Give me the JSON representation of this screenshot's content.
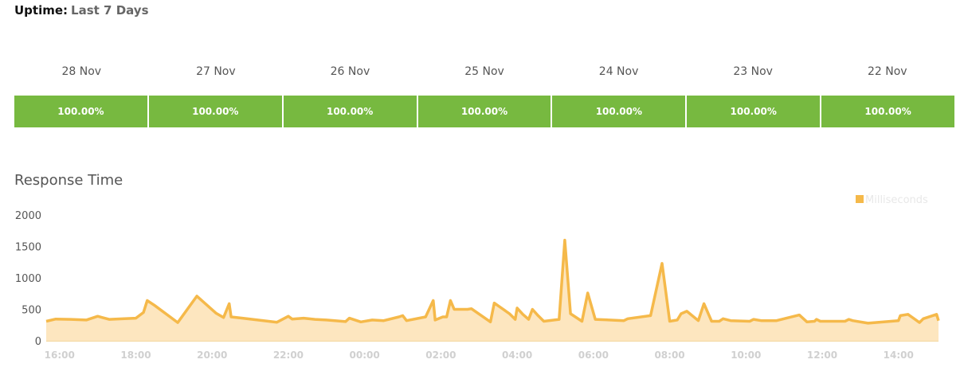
{
  "uptime": {
    "label": "Uptime:",
    "period": "Last 7 Days",
    "ok_color": "#77b940",
    "days": [
      {
        "date": "28 Nov",
        "percent": "100.00%"
      },
      {
        "date": "27 Nov",
        "percent": "100.00%"
      },
      {
        "date": "26 Nov",
        "percent": "100.00%"
      },
      {
        "date": "25 Nov",
        "percent": "100.00%"
      },
      {
        "date": "24 Nov",
        "percent": "100.00%"
      },
      {
        "date": "23 Nov",
        "percent": "100.00%"
      },
      {
        "date": "22 Nov",
        "percent": "100.00%"
      }
    ]
  },
  "response": {
    "title": "Response Time"
  },
  "chart_data": {
    "type": "area",
    "title": "Response Time",
    "xlabel": "",
    "ylabel": "",
    "ylim": [
      0,
      2000
    ],
    "y_ticks": [
      "2000",
      "1500",
      "1000",
      "500",
      "0"
    ],
    "x_ticks": [
      {
        "label": "16:00",
        "x": 16
      },
      {
        "label": "18:00",
        "x": 18
      },
      {
        "label": "20:00",
        "x": 20
      },
      {
        "label": "22:00",
        "x": 22
      },
      {
        "label": "00:00",
        "x": 24
      },
      {
        "label": "02:00",
        "x": 26
      },
      {
        "label": "04:00",
        "x": 28
      },
      {
        "label": "06:00",
        "x": 30
      },
      {
        "label": "08:00",
        "x": 32
      },
      {
        "label": "10:00",
        "x": 34
      },
      {
        "label": "12:00",
        "x": 36
      },
      {
        "label": "14:00",
        "x": 38
      }
    ],
    "xlim": [
      15.65,
      39.05
    ],
    "grid": false,
    "legend": "top-right",
    "line_color": "#f5b94a",
    "fill_color": "#fde6bf",
    "series": [
      {
        "name": "Milliseconds",
        "points": [
          [
            15.65,
            310
          ],
          [
            15.9,
            345
          ],
          [
            16.3,
            340
          ],
          [
            16.7,
            330
          ],
          [
            17.0,
            390
          ],
          [
            17.3,
            340
          ],
          [
            17.7,
            350
          ],
          [
            18.0,
            360
          ],
          [
            18.2,
            450
          ],
          [
            18.3,
            640
          ],
          [
            18.5,
            560
          ],
          [
            19.1,
            290
          ],
          [
            19.6,
            710
          ],
          [
            20.1,
            440
          ],
          [
            20.3,
            370
          ],
          [
            20.45,
            590
          ],
          [
            20.5,
            380
          ],
          [
            20.8,
            360
          ],
          [
            21.7,
            295
          ],
          [
            22.0,
            390
          ],
          [
            22.1,
            345
          ],
          [
            22.4,
            360
          ],
          [
            22.7,
            340
          ],
          [
            23.0,
            330
          ],
          [
            23.5,
            305
          ],
          [
            23.6,
            360
          ],
          [
            23.9,
            300
          ],
          [
            24.2,
            330
          ],
          [
            24.5,
            320
          ],
          [
            24.9,
            380
          ],
          [
            25.0,
            400
          ],
          [
            25.1,
            320
          ],
          [
            25.6,
            380
          ],
          [
            25.8,
            640
          ],
          [
            25.85,
            330
          ],
          [
            26.05,
            380
          ],
          [
            26.15,
            380
          ],
          [
            26.25,
            640
          ],
          [
            26.35,
            500
          ],
          [
            26.7,
            500
          ],
          [
            26.8,
            510
          ],
          [
            27.3,
            300
          ],
          [
            27.4,
            600
          ],
          [
            27.8,
            430
          ],
          [
            27.95,
            340
          ],
          [
            28.0,
            520
          ],
          [
            28.15,
            420
          ],
          [
            28.3,
            340
          ],
          [
            28.4,
            500
          ],
          [
            28.55,
            400
          ],
          [
            28.7,
            310
          ],
          [
            29.1,
            340
          ],
          [
            29.25,
            1600
          ],
          [
            29.4,
            430
          ],
          [
            29.7,
            310
          ],
          [
            29.85,
            760
          ],
          [
            30.05,
            340
          ],
          [
            30.8,
            320
          ],
          [
            30.9,
            350
          ],
          [
            31.5,
            400
          ],
          [
            31.8,
            1230
          ],
          [
            32.0,
            310
          ],
          [
            32.2,
            330
          ],
          [
            32.3,
            430
          ],
          [
            32.45,
            470
          ],
          [
            32.75,
            320
          ],
          [
            32.9,
            590
          ],
          [
            33.1,
            310
          ],
          [
            33.3,
            310
          ],
          [
            33.4,
            350
          ],
          [
            33.6,
            320
          ],
          [
            34.1,
            310
          ],
          [
            34.2,
            340
          ],
          [
            34.4,
            320
          ],
          [
            34.8,
            320
          ],
          [
            35.4,
            410
          ],
          [
            35.6,
            300
          ],
          [
            35.8,
            310
          ],
          [
            35.85,
            340
          ],
          [
            35.95,
            310
          ],
          [
            36.6,
            310
          ],
          [
            36.7,
            340
          ],
          [
            36.8,
            320
          ],
          [
            37.2,
            280
          ],
          [
            38.0,
            320
          ],
          [
            38.05,
            400
          ],
          [
            38.25,
            420
          ],
          [
            38.55,
            290
          ],
          [
            38.65,
            350
          ],
          [
            39.0,
            420
          ],
          [
            39.05,
            320
          ]
        ]
      }
    ]
  }
}
